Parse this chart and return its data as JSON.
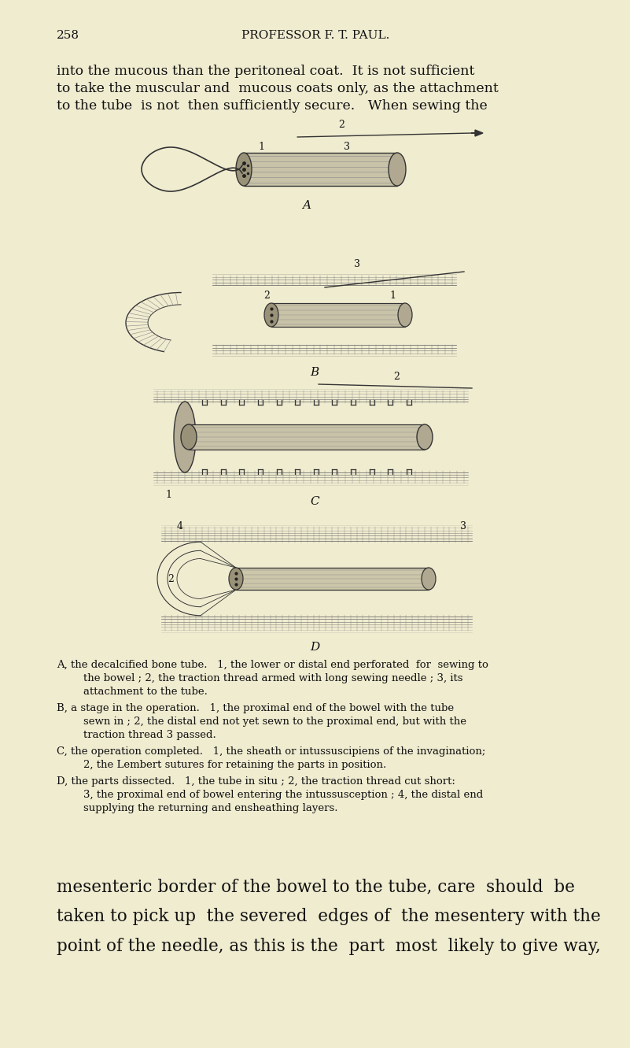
{
  "bg_color": "#f0ecd0",
  "page_number": "258",
  "header": "PROFESSOR F. T. PAUL.",
  "intro_line1": "into the mucous than the peritoneal coat.  It is not sufficient",
  "intro_line2": "to take the muscular and  mucous coats only, as the attachment",
  "intro_line3": "to the tube  is not  then sufficiently secure.   When sewing the",
  "cap_A1": "A, the decalcified bone tube.   1, the lower or distal end perforated  for  sewing to",
  "cap_A2": "        the bowel ; 2, the traction thread armed with long sewing needle ; 3, its",
  "cap_A3": "        attachment to the tube.",
  "cap_B1": "B, a stage in the operation.   1, the proximal end of the bowel with the tube",
  "cap_B2": "        sewn in ; 2, the distal end not yet sewn to the proximal end, but with the",
  "cap_B3": "        traction thread 3 passed.",
  "cap_C1": "C, the operation completed.   1, the sheath or intussuscipiens of the invagination;",
  "cap_C2": "        2, the Lembert sutures for retaining the parts in position.",
  "cap_D1": "D, the parts dissected.   1, the tube in situ ; 2, the traction thread cut short:",
  "cap_D2": "        3, the proximal end of bowel entering the intussusception ; 4, the distal end",
  "cap_D3": "        supplying the returning and ensheathing layers.",
  "close_line1": "mesenteric border of the bowel to the tube, care  should  be",
  "close_line2": "taken to pick up  the severed  edges of  the mesentery with the",
  "close_line3": "point of the needle, as this is the  part  most  likely to give way,",
  "text_color": "#111111",
  "line_color": "#333333",
  "fig_bg": "#d8d0b0"
}
